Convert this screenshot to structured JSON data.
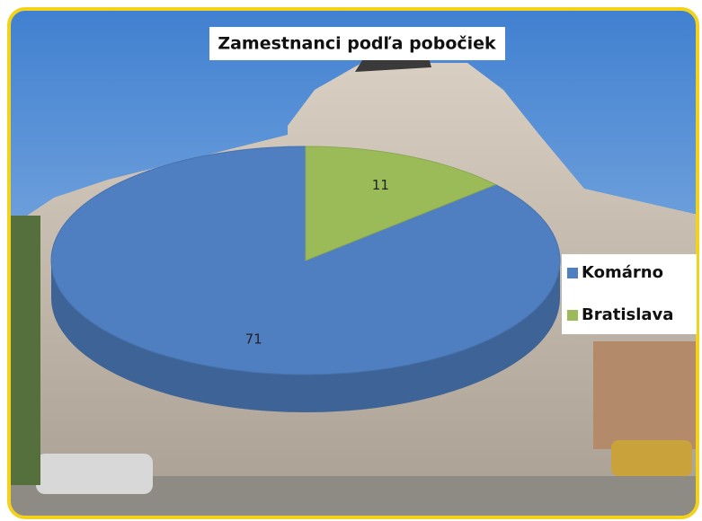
{
  "chart_data": {
    "type": "pie",
    "title": "Zamestnanci podľa pobočiek",
    "categories": [
      "Komárno",
      "Bratislava"
    ],
    "values": [
      71,
      11
    ],
    "colors": [
      "#4f7fc0",
      "#9bbb59"
    ],
    "legend": "right"
  }
}
